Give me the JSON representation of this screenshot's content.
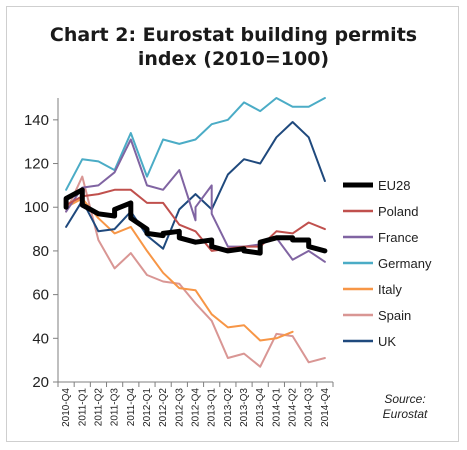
{
  "title_line1": "Chart 2: Eurostat building permits",
  "title_line2": "index (2010=100)",
  "source_line1": "Source:",
  "source_line2": "Eurostat",
  "chart_data": {
    "type": "line",
    "title": "Chart 2: Eurostat building permits index (2010=100)",
    "ylim": [
      20,
      150
    ],
    "yticks": [
      20,
      40,
      60,
      80,
      100,
      120,
      140
    ],
    "grid": false,
    "legend_position": "right",
    "categories": [
      "2010-Q4",
      "2011-Q1",
      "2011-Q2",
      "2011-Q3",
      "2011-Q4",
      "2012-Q1",
      "2012-Q2",
      "2012-Q3",
      "2012-Q4",
      "2013-Q1",
      "2013-Q2",
      "2013-Q3",
      "2013-Q4",
      "2014-Q1",
      "2014-Q2",
      "2014-Q3",
      "2014-Q4"
    ],
    "series": [
      {
        "name": "EU28",
        "color": "#000000",
        "width": 5,
        "x": [
          "2010-Q4",
          "2010-Q4",
          "2011-Q1",
          "2011-Q1",
          "2011-Q2",
          "2011-Q2",
          "2011-Q3",
          "2011-Q3",
          "2011-Q4",
          "2011-Q4",
          "2012-Q1",
          "2012-Q1",
          "2012-Q2",
          "2012-Q2",
          "2012-Q3",
          "2012-Q3",
          "2012-Q4",
          "2012-Q4",
          "2013-Q1",
          "2013-Q1",
          "2013-Q2",
          "2013-Q2",
          "2013-Q3",
          "2013-Q3",
          "2013-Q4",
          "2013-Q4",
          "2014-Q1",
          "2014-Q1",
          "2014-Q2",
          "2014-Q2",
          "2014-Q3",
          "2014-Q3",
          "2014-Q4"
        ],
        "values": [
          100,
          104,
          108,
          101,
          97,
          97,
          96,
          99,
          102,
          95,
          90,
          88,
          87,
          88,
          89,
          86,
          84,
          84,
          85,
          82,
          80,
          80,
          81,
          80,
          79,
          84,
          86,
          86,
          86,
          85,
          85,
          82,
          80
        ]
      },
      {
        "name": "Poland",
        "color": "#c0504d",
        "width": 2,
        "x": [
          "2010-Q4",
          "2011-Q1",
          "2011-Q2",
          "2011-Q3",
          "2011-Q4",
          "2012-Q1",
          "2012-Q2",
          "2012-Q3",
          "2012-Q4",
          "2013-Q1",
          "2013-Q2",
          "2013-Q3",
          "2013-Q4",
          "2014-Q1",
          "2014-Q2",
          "2014-Q3",
          "2014-Q4"
        ],
        "values": [
          101,
          105,
          106,
          108,
          108,
          102,
          102,
          92,
          89,
          80,
          81,
          82,
          82,
          89,
          88,
          93,
          90
        ]
      },
      {
        "name": "France",
        "color": "#8064a2",
        "width": 2,
        "x": [
          "2010-Q4",
          "2011-Q1",
          "2011-Q2",
          "2011-Q3",
          "2011-Q4",
          "2012-Q1",
          "2012-Q2",
          "2012-Q3",
          "2012-Q4",
          "2012-Q4",
          "2013-Q1",
          "2013-Q1",
          "2013-Q2",
          "2013-Q3",
          "2013-Q4",
          "2014-Q1",
          "2014-Q2",
          "2014-Q3",
          "2014-Q4"
        ],
        "values": [
          98,
          109,
          110,
          116,
          131,
          110,
          108,
          117,
          94,
          100,
          110,
          97,
          82,
          82,
          83,
          86,
          76,
          80,
          75
        ]
      },
      {
        "name": "Germany",
        "color": "#4bacc6",
        "width": 2,
        "x": [
          "2010-Q4",
          "2011-Q1",
          "2011-Q2",
          "2011-Q3",
          "2011-Q4",
          "2012-Q1",
          "2012-Q2",
          "2012-Q3",
          "2012-Q4",
          "2013-Q1",
          "2013-Q2",
          "2013-Q3",
          "2013-Q4",
          "2014-Q1",
          "2014-Q2",
          "2014-Q3",
          "2014-Q4"
        ],
        "values": [
          108,
          122,
          121,
          117,
          134,
          114,
          131,
          129,
          131,
          138,
          140,
          148,
          144,
          150,
          146,
          146,
          150
        ]
      },
      {
        "name": "Italy",
        "color": "#f79646",
        "width": 2,
        "x": [
          "2010-Q4",
          "2011-Q1",
          "2011-Q2",
          "2011-Q3",
          "2011-Q4",
          "2012-Q1",
          "2012-Q2",
          "2012-Q3",
          "2012-Q4",
          "2013-Q1",
          "2013-Q2",
          "2013-Q3",
          "2013-Q4",
          "2014-Q1",
          "2014-Q2"
        ],
        "values": [
          100,
          104,
          95,
          88,
          91,
          80,
          70,
          63,
          62,
          51,
          45,
          46,
          39,
          40,
          43
        ]
      },
      {
        "name": "Spain",
        "color": "#d99694",
        "width": 2,
        "x": [
          "2010-Q4",
          "2011-Q1",
          "2011-Q2",
          "2011-Q3",
          "2011-Q4",
          "2012-Q1",
          "2012-Q2",
          "2012-Q3",
          "2012-Q4",
          "2013-Q1",
          "2013-Q2",
          "2013-Q3",
          "2013-Q4",
          "2014-Q1",
          "2014-Q2",
          "2014-Q3",
          "2014-Q4"
        ],
        "values": [
          98,
          114,
          85,
          72,
          79,
          69,
          66,
          65,
          56,
          48,
          31,
          33,
          27,
          42,
          41,
          29,
          31
        ]
      },
      {
        "name": "UK",
        "color": "#1f497d",
        "width": 2,
        "x": [
          "2010-Q4",
          "2011-Q1",
          "2011-Q2",
          "2011-Q3",
          "2011-Q4",
          "2012-Q1",
          "2012-Q2",
          "2012-Q3",
          "2012-Q4",
          "2013-Q1",
          "2013-Q2",
          "2013-Q3",
          "2013-Q4",
          "2014-Q1",
          "2014-Q2",
          "2014-Q3",
          "2014-Q4"
        ],
        "values": [
          91,
          103,
          89,
          90,
          98,
          87,
          81,
          99,
          106,
          99,
          115,
          122,
          120,
          132,
          139,
          132,
          112
        ]
      }
    ]
  }
}
